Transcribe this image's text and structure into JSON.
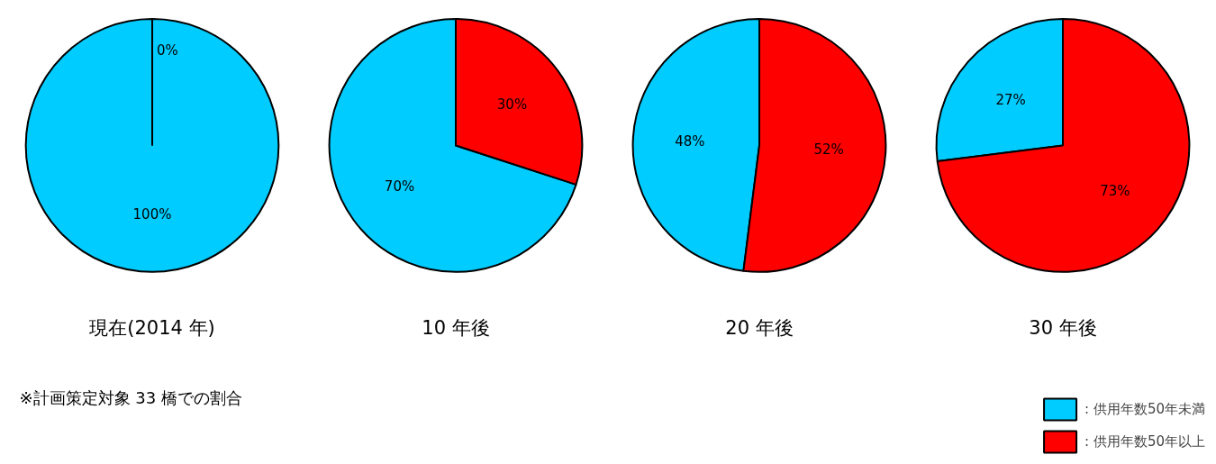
{
  "chart_data": [
    {
      "type": "pie",
      "title": "現在(2014 年)",
      "categories": [
        null,
        null
      ],
      "values": [
        100,
        0
      ],
      "colors": [
        "#00ccff",
        "#ff0000"
      ],
      "value_labels": [
        "100%",
        "0%"
      ],
      "annotations": [
        "※計画策定対象 33 橋での割合"
      ]
    },
    {
      "type": "pie",
      "title": "10 年後",
      "categories": [
        null,
        null
      ],
      "values": [
        70,
        30
      ],
      "colors": [
        "#00ccff",
        "#ff0000"
      ],
      "value_labels": [
        "70%",
        "30%"
      ]
    },
    {
      "type": "pie",
      "title": "20 年後",
      "categories": [
        null,
        null
      ],
      "values": [
        48,
        52
      ],
      "colors": [
        "#00ccff",
        "#ff0000"
      ],
      "value_labels": [
        "48%",
        "52%"
      ]
    },
    {
      "type": "pie",
      "title": "30 年後",
      "categories": [
        ": 供用年数50年未満",
        ": 供用年数50年以上"
      ],
      "values": [
        27,
        73
      ],
      "colors": [
        "#00ccff",
        "#ff0000"
      ],
      "value_labels": [
        "27%",
        "73%"
      ],
      "legend": "bottom right"
    }
  ]
}
